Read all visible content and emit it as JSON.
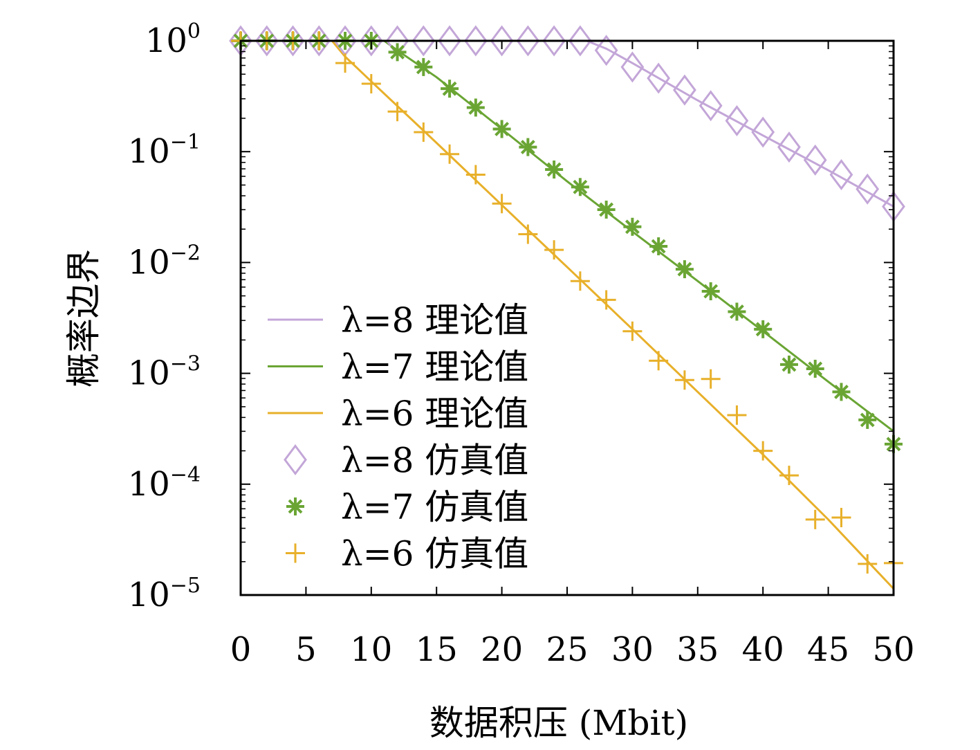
{
  "chart_data": {
    "type": "line",
    "xlabel": "数据积压 (Mbit)",
    "ylabel": "概率边界",
    "xlim": [
      0,
      50
    ],
    "ylim": [
      1e-05,
      1
    ],
    "y_scale": "log",
    "x_ticks": [
      0,
      5,
      10,
      15,
      20,
      25,
      30,
      35,
      40,
      45,
      50
    ],
    "y_ticks": [
      {
        "base": "10",
        "exp": "0",
        "value": 1
      },
      {
        "base": "10",
        "exp": "−1",
        "value": 0.1
      },
      {
        "base": "10",
        "exp": "−2",
        "value": 0.01
      },
      {
        "base": "10",
        "exp": "−3",
        "value": 0.001
      },
      {
        "base": "10",
        "exp": "−4",
        "value": 0.0001
      },
      {
        "base": "10",
        "exp": "−5",
        "value": 1e-05
      }
    ],
    "grid": false,
    "legend_position": "lower-left",
    "series": [
      {
        "name": "λ=8 理论值",
        "kind": "line",
        "color": "#c3a6d8",
        "x": [
          0,
          26.5,
          28,
          30,
          35,
          40,
          45,
          50
        ],
        "y": [
          1,
          1,
          0.85,
          0.63,
          0.29,
          0.14,
          0.068,
          0.032
        ]
      },
      {
        "name": "λ=7 理论值",
        "kind": "line",
        "color": "#6aa534",
        "x": [
          0,
          11,
          12,
          15,
          20,
          25,
          30,
          35,
          40,
          45,
          50
        ],
        "y": [
          1,
          1,
          0.82,
          0.47,
          0.16,
          0.054,
          0.019,
          0.0068,
          0.0024,
          0.00084,
          0.0003
        ]
      },
      {
        "name": "λ=6 理论值",
        "kind": "line",
        "color": "#e8b02a",
        "x": [
          0,
          7,
          8,
          10,
          15,
          20,
          25,
          30,
          35,
          40,
          45,
          50
        ],
        "y": [
          1,
          1,
          0.72,
          0.43,
          0.12,
          0.033,
          0.0091,
          0.0025,
          0.00068,
          0.000185,
          4.8e-05,
          1.14e-05
        ]
      },
      {
        "name": "λ=8 仿真值",
        "kind": "scatter",
        "marker": "diamond",
        "color": "#c3a6d8",
        "x": [
          0,
          2,
          4,
          6,
          8,
          10,
          12,
          14,
          16,
          18,
          20,
          22,
          24,
          26,
          28,
          30,
          32,
          34,
          36,
          38,
          40,
          42,
          44,
          46,
          48,
          50
        ],
        "y": [
          1,
          1,
          1,
          1,
          1,
          1,
          1,
          1,
          1,
          1,
          1,
          1,
          1,
          1,
          0.82,
          0.58,
          0.46,
          0.36,
          0.26,
          0.19,
          0.15,
          0.11,
          0.084,
          0.062,
          0.046,
          0.032
        ]
      },
      {
        "name": "λ=7 仿真值",
        "kind": "scatter",
        "marker": "asterisk",
        "color": "#6aa534",
        "x": [
          0,
          2,
          4,
          6,
          8,
          10,
          12,
          14,
          16,
          18,
          20,
          22,
          24,
          26,
          28,
          30,
          32,
          34,
          36,
          38,
          40,
          42,
          44,
          46,
          48,
          50
        ],
        "y": [
          1,
          1,
          1,
          1,
          1,
          1,
          0.79,
          0.58,
          0.37,
          0.25,
          0.16,
          0.11,
          0.069,
          0.048,
          0.03,
          0.021,
          0.014,
          0.0087,
          0.0055,
          0.0036,
          0.0025,
          0.0012,
          0.0011,
          0.00068,
          0.00038,
          0.00023
        ]
      },
      {
        "name": "λ=6 仿真值",
        "kind": "scatter",
        "marker": "plus",
        "color": "#e8b02a",
        "x": [
          0,
          2,
          4,
          6,
          8,
          10,
          12,
          14,
          16,
          18,
          20,
          22,
          24,
          26,
          28,
          30,
          32,
          34,
          36,
          38,
          40,
          42,
          44,
          46,
          48,
          50
        ],
        "y": [
          1,
          1,
          1,
          1,
          0.63,
          0.41,
          0.23,
          0.15,
          0.095,
          0.062,
          0.034,
          0.018,
          0.013,
          0.0068,
          0.0046,
          0.0024,
          0.0013,
          0.00087,
          0.00089,
          0.00042,
          0.0002,
          0.00012,
          4.8e-05,
          5e-05,
          1.91e-05,
          1.94e-05
        ]
      }
    ]
  }
}
